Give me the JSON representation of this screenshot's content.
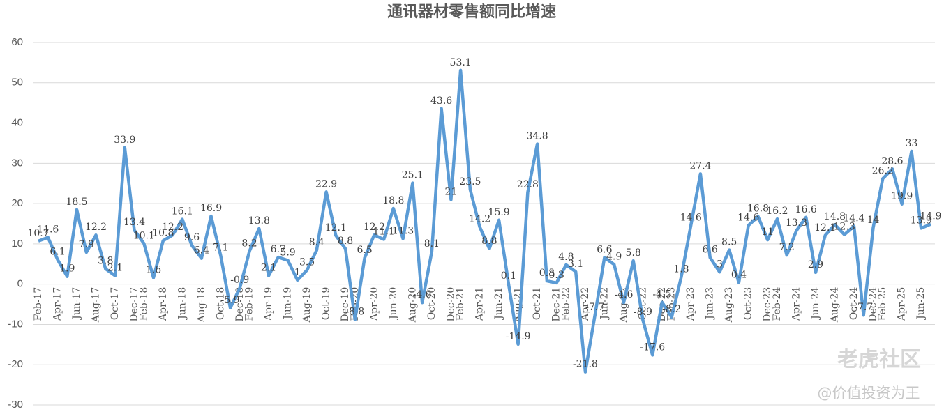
{
  "chart_data": {
    "type": "line",
    "title": "通讯器材零售额同比增速",
    "categories": [
      "Feb-17",
      null,
      "Apr-17",
      null,
      "Jun-17",
      null,
      "Aug-17",
      null,
      "Oct-17",
      null,
      "Dec-17",
      "Feb-18",
      null,
      "Apr-18",
      null,
      "Jun-18",
      null,
      "Aug-18",
      null,
      "Oct-18",
      null,
      "Dec-18",
      "Feb-19",
      null,
      "Apr-19",
      null,
      "Jun-19",
      null,
      "Aug-19",
      null,
      "Oct-19",
      null,
      "Dec-19",
      "Feb-20",
      null,
      "Apr-20",
      null,
      "Jun-20",
      null,
      "Aug-20",
      null,
      "Oct-20",
      null,
      "Dec-20",
      "Feb-21",
      null,
      "Apr-21",
      null,
      "Jun-21",
      null,
      "Aug-21",
      null,
      "Oct-21",
      null,
      "Dec-21",
      "Feb-22",
      null,
      "Apr-22",
      null,
      "Jun-22",
      null,
      "Aug-22",
      null,
      "Oct-22",
      null,
      "Dec-22",
      "Feb-23",
      null,
      "Apr-23",
      null,
      "Jun-23",
      null,
      "Aug-23",
      null,
      "Oct-23",
      null,
      "Dec-23",
      "Feb-24",
      null,
      "Apr-24",
      null,
      "Jun-24",
      null,
      "Aug-24",
      null,
      "Oct-24",
      null,
      "Dec-24",
      "Feb-25",
      null,
      "Apr-25",
      null,
      "Jun-25",
      null
    ],
    "values": [
      10.7,
      11.6,
      6.1,
      1.9,
      18.5,
      7.9,
      12.2,
      3.8,
      2.1,
      33.9,
      13.4,
      10.1,
      1.6,
      10.8,
      12.2,
      16.1,
      9.6,
      6.4,
      16.9,
      7.1,
      -5.9,
      -0.9,
      8.2,
      13.8,
      2.1,
      6.7,
      5.9,
      1,
      3.5,
      8.4,
      22.9,
      12.1,
      8.8,
      -8.8,
      6.5,
      12.2,
      11.1,
      18.8,
      11.3,
      25.1,
      -4.6,
      8.1,
      43.6,
      21,
      53.1,
      23.5,
      14.2,
      8.8,
      15.9,
      0.1,
      -14.9,
      22.8,
      34.8,
      0.8,
      0.3,
      4.8,
      3.1,
      -21.8,
      -7.7,
      6.6,
      4.9,
      -4.6,
      5.8,
      -8.9,
      -17.6,
      -4.5,
      -8.2,
      1.8,
      14.6,
      27.4,
      6.6,
      3,
      8.5,
      0.4,
      14.6,
      16.8,
      11,
      16.2,
      7.2,
      13.3,
      16.6,
      2.9,
      12.1,
      14.8,
      12.3,
      14.4,
      -7.7,
      14,
      26.2,
      28.6,
      19.9,
      33,
      13.9,
      14.9
    ],
    "color": "#5b9bd5",
    "ylim": [
      -30,
      60
    ],
    "yticks": [
      -30,
      -20,
      -10,
      0,
      10,
      20,
      30,
      40,
      50,
      60
    ],
    "grid": true,
    "watermarks": [
      "老虎社区",
      "@价值投资为王"
    ]
  }
}
